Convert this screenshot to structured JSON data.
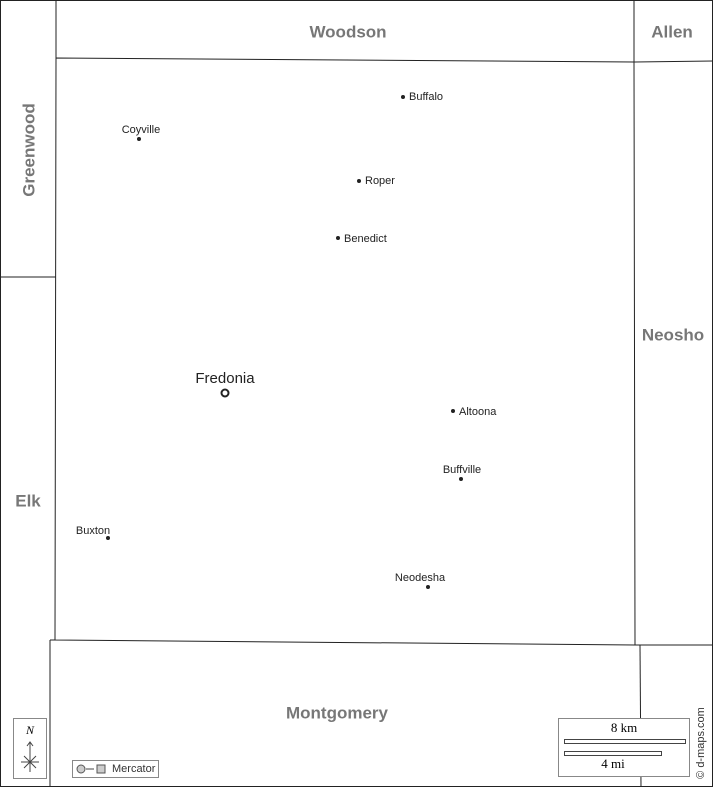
{
  "map": {
    "counties": [
      {
        "label": "Woodson"
      },
      {
        "label": "Allen"
      },
      {
        "label": "Greenwood"
      },
      {
        "label": "Neosho"
      },
      {
        "label": "Elk"
      },
      {
        "label": "Montgomery"
      }
    ],
    "seat": {
      "label": "Fredonia"
    },
    "towns": [
      {
        "label": "Buffalo"
      },
      {
        "label": "Coyville"
      },
      {
        "label": "Roper"
      },
      {
        "label": "Benedict"
      },
      {
        "label": "Altoona"
      },
      {
        "label": "Buffville"
      },
      {
        "label": "Buxton"
      },
      {
        "label": "Neodesha"
      }
    ],
    "compass": "N",
    "projection": "Mercator",
    "scale": {
      "km": "8 km",
      "mi": "4 mi"
    },
    "credit": "© d-maps.com"
  }
}
